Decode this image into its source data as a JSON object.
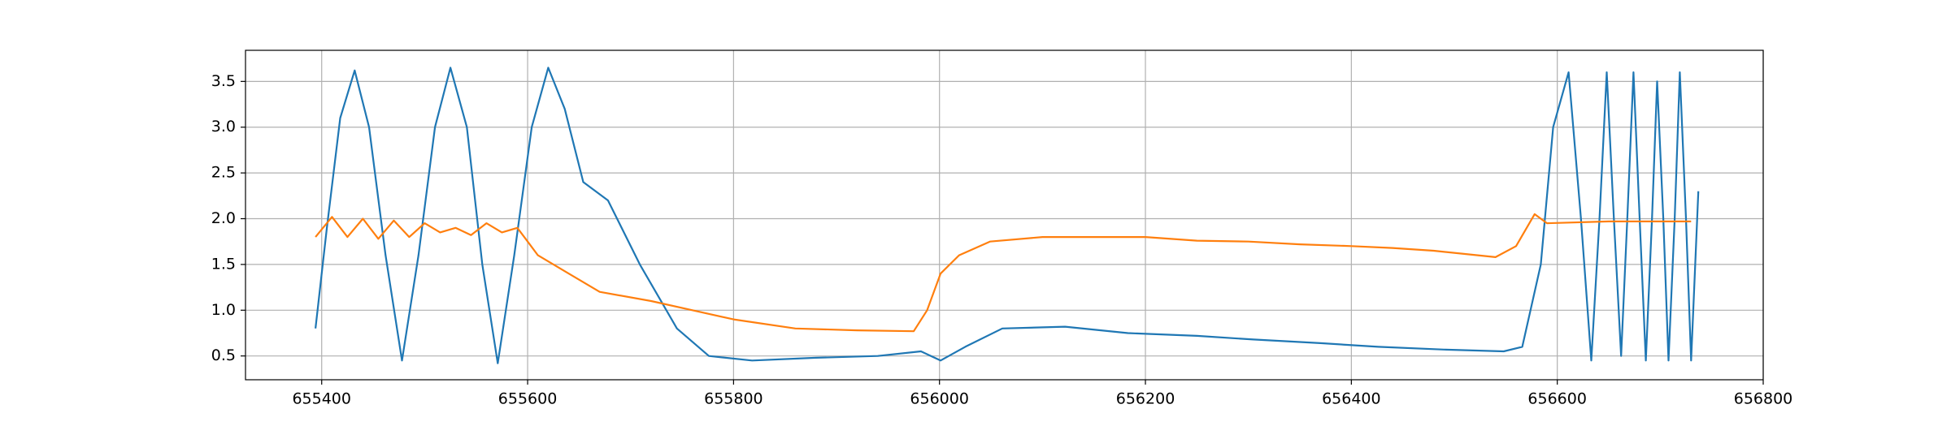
{
  "chart_data": {
    "type": "line",
    "grid": true,
    "xlim": [
      655326,
      656800
    ],
    "ylim": [
      0.24,
      3.84
    ],
    "xticks": [
      655400,
      655600,
      655800,
      656000,
      656200,
      656400,
      656600,
      656800
    ],
    "yticks": [
      0.5,
      {
        "value": 1,
        "label": "1.0"
      },
      1.5,
      {
        "value": 2,
        "label": "2.0"
      },
      2.5,
      {
        "value": 3,
        "label": "3.0"
      },
      3.5
    ],
    "series": [
      {
        "color": "#1f77b4",
        "x": [
          655394,
          655405,
          655418,
          655432,
          655446,
          655462,
          655478,
          655494,
          655510,
          655525,
          655541,
          655556,
          655571,
          655587,
          655604,
          655620,
          655636,
          655654,
          655678,
          655709,
          655745,
          655776,
          655818,
          655880,
          655940,
          655982,
          656001,
          656025,
          656061,
          656122,
          656183,
          656250,
          656305,
          656370,
          656426,
          656490,
          656548,
          656566,
          656584,
          656596,
          656611,
          656623,
          656633,
          656641,
          656648,
          656655,
          656662,
          656668,
          656674,
          656680,
          656686,
          656692,
          656697,
          656703,
          656708,
          656714,
          656719,
          656725,
          656730,
          656737
        ],
        "values": [
          0.8,
          1.9,
          3.1,
          3.62,
          3.0,
          1.6,
          0.45,
          1.6,
          3.0,
          3.65,
          3.0,
          1.5,
          0.42,
          1.6,
          3.0,
          3.65,
          3.2,
          2.4,
          2.2,
          1.5,
          0.8,
          0.5,
          0.45,
          0.48,
          0.5,
          0.55,
          0.45,
          0.6,
          0.8,
          0.82,
          0.75,
          0.72,
          0.68,
          0.64,
          0.6,
          0.57,
          0.55,
          0.6,
          1.5,
          3.0,
          3.6,
          2.0,
          0.45,
          2.0,
          3.6,
          2.0,
          0.5,
          2.0,
          3.6,
          2.0,
          0.45,
          2.0,
          3.5,
          2.0,
          0.45,
          2.0,
          3.6,
          2.0,
          0.45,
          2.3
        ]
      },
      {
        "color": "#ff7f0e",
        "x": [
          655394,
          655410,
          655425,
          655440,
          655455,
          655470,
          655485,
          655500,
          655515,
          655530,
          655545,
          655560,
          655575,
          655590,
          655600,
          655610,
          655640,
          655670,
          655720,
          655760,
          655800,
          655860,
          655920,
          655975,
          655988,
          656001,
          656019,
          656049,
          656100,
          656150,
          656200,
          656250,
          656300,
          656350,
          656400,
          656440,
          656480,
          656540,
          656560,
          656578,
          656590,
          656650,
          656730
        ],
        "values": [
          1.8,
          2.02,
          1.8,
          2.0,
          1.78,
          1.98,
          1.8,
          1.95,
          1.85,
          1.9,
          1.82,
          1.95,
          1.85,
          1.9,
          1.75,
          1.6,
          1.4,
          1.2,
          1.1,
          1.0,
          0.9,
          0.8,
          0.78,
          0.77,
          1.0,
          1.4,
          1.6,
          1.75,
          1.8,
          1.8,
          1.8,
          1.76,
          1.75,
          1.72,
          1.7,
          1.68,
          1.65,
          1.58,
          1.7,
          2.05,
          1.95,
          1.97,
          1.97
        ]
      }
    ]
  }
}
